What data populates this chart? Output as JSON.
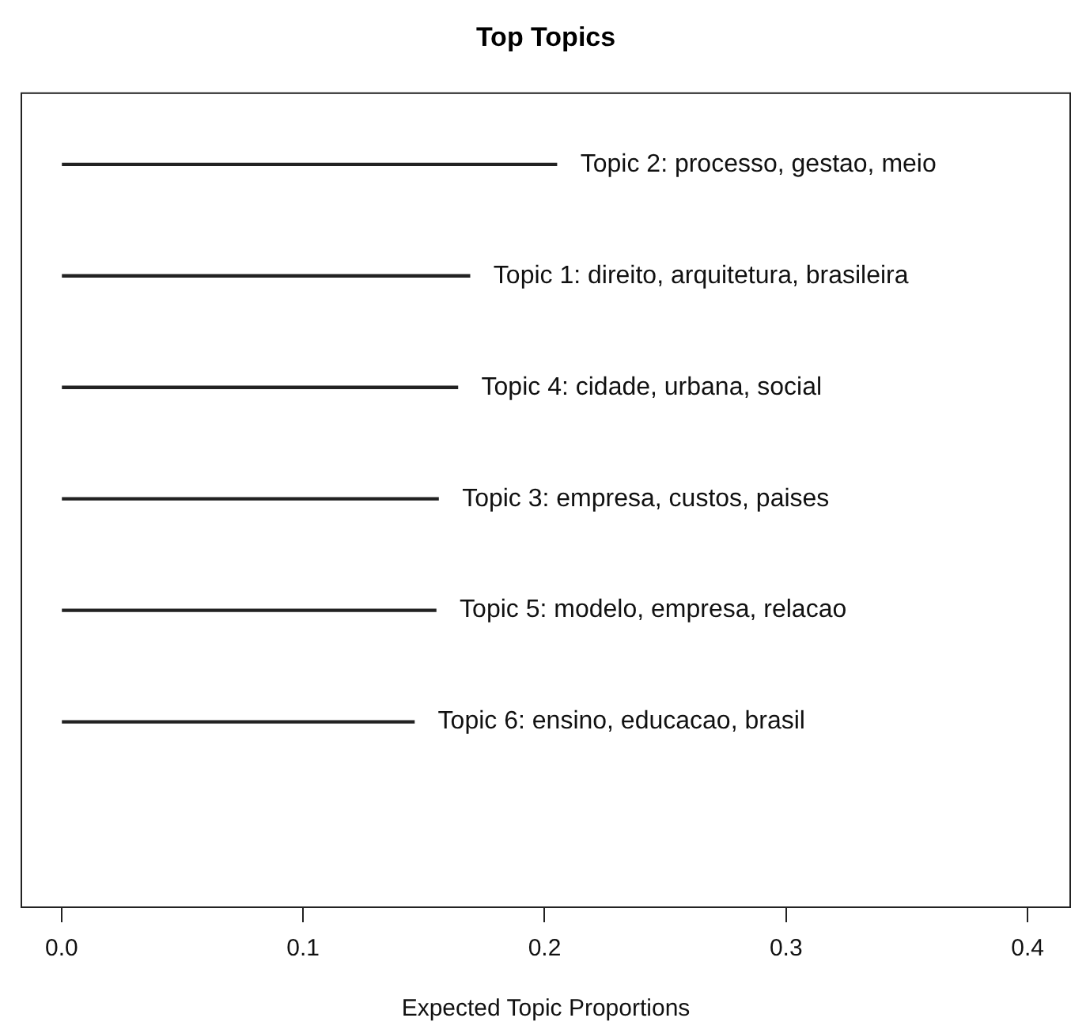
{
  "chart_data": {
    "type": "bar",
    "orientation": "horizontal",
    "title": "Top Topics",
    "xlabel": "Expected Topic Proportions",
    "categories": [
      "Topic 2: processo, gestao, meio",
      "Topic 1: direito, arquitetura, brasileira",
      "Topic 4: cidade, urbana, social",
      "Topic 3: empresa, custos, paises",
      "Topic 5: modelo, empresa, relacao",
      "Topic 6: ensino, educacao, brasil"
    ],
    "values": [
      0.205,
      0.169,
      0.164,
      0.156,
      0.155,
      0.146
    ],
    "color": "#222222",
    "xlim": [
      -0.017,
      0.418
    ],
    "xticks": [
      {
        "value": 0,
        "label": "0.0"
      },
      0.1,
      0.2,
      0.3,
      0.4
    ],
    "tick_labels": "x"
  }
}
